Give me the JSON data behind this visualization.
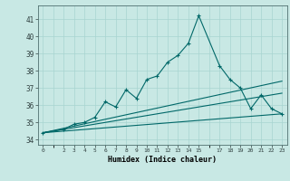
{
  "xlabel": "Humidex (Indice chaleur)",
  "ylabel": "",
  "bg_color": "#c8e8e4",
  "grid_color": "#a8d4d0",
  "line_color": "#006868",
  "xlim": [
    -0.5,
    23.5
  ],
  "ylim": [
    33.7,
    41.8
  ],
  "yticks": [
    34,
    35,
    36,
    37,
    38,
    39,
    40,
    41
  ],
  "xtick_positions": [
    0,
    2,
    3,
    4,
    5,
    6,
    7,
    8,
    9,
    10,
    11,
    12,
    13,
    14,
    15,
    17,
    18,
    19,
    20,
    21,
    22,
    23
  ],
  "xtick_labels": [
    "0",
    "2",
    "3",
    "4",
    "5",
    "6",
    "7",
    "8",
    "9",
    "10",
    "11",
    "12",
    "13",
    "14",
    "15",
    "17",
    "18",
    "19",
    "20",
    "21",
    "22",
    "23"
  ],
  "main_line": {
    "x": [
      0,
      2,
      3,
      4,
      5,
      6,
      7,
      8,
      9,
      10,
      11,
      12,
      13,
      14,
      15,
      17,
      18,
      19,
      20,
      21,
      22,
      23
    ],
    "y": [
      34.4,
      34.6,
      34.9,
      35.0,
      35.3,
      36.2,
      35.9,
      36.9,
      36.4,
      37.5,
      37.7,
      38.5,
      38.9,
      39.6,
      41.2,
      38.3,
      37.5,
      37.0,
      35.8,
      36.6,
      35.8,
      35.5
    ]
  },
  "line2": {
    "x": [
      0,
      23
    ],
    "y": [
      34.4,
      37.4
    ]
  },
  "line3": {
    "x": [
      0,
      23
    ],
    "y": [
      34.4,
      36.7
    ]
  },
  "line4": {
    "x": [
      0,
      23
    ],
    "y": [
      34.4,
      35.5
    ]
  }
}
